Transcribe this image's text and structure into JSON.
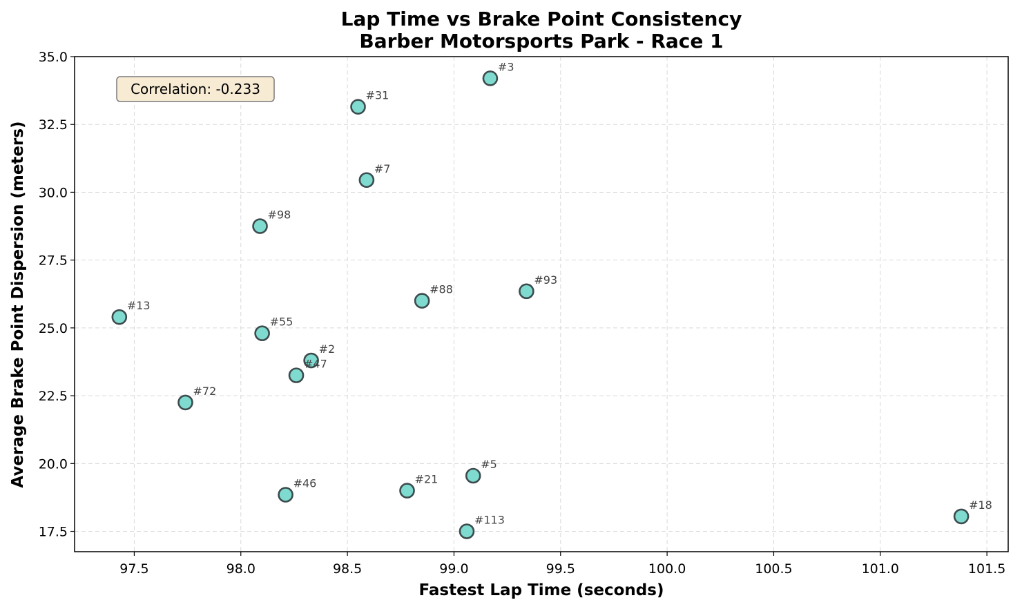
{
  "chart_data": {
    "type": "scatter",
    "title": "Lap Time vs Brake Point Consistency",
    "subtitle": "Barber Motorsports Park - Race 1",
    "xlabel": "Fastest Lap Time (seconds)",
    "ylabel": "Average Brake Point Dispersion (meters)",
    "xlim": [
      97.22,
      101.6
    ],
    "ylim": [
      16.75,
      35.0
    ],
    "xticks": [
      "97.5",
      "98.0",
      "98.5",
      "99.0",
      "99.5",
      "100.0",
      "100.5",
      "101.0",
      "101.5"
    ],
    "yticks": [
      "17.5",
      "20.0",
      "22.5",
      "25.0",
      "27.5",
      "30.0",
      "32.5",
      "35.0"
    ],
    "grid": true,
    "annotation": "Correlation: -0.233",
    "colors": {
      "marker_fill": "#7fdbd0",
      "marker_edge": "#3d4b4d",
      "annotation_bg": "#f7ebd4",
      "annotation_border": "#7a7a7a"
    },
    "points": [
      {
        "label": "#3",
        "x": 99.17,
        "y": 34.2
      },
      {
        "label": "#31",
        "x": 98.55,
        "y": 33.15
      },
      {
        "label": "#7",
        "x": 98.59,
        "y": 30.45
      },
      {
        "label": "#98",
        "x": 98.09,
        "y": 28.75
      },
      {
        "label": "#88",
        "x": 98.85,
        "y": 26.0
      },
      {
        "label": "#93",
        "x": 99.34,
        "y": 26.35
      },
      {
        "label": "#13",
        "x": 97.43,
        "y": 25.4
      },
      {
        "label": "#55",
        "x": 98.1,
        "y": 24.8
      },
      {
        "label": "#2",
        "x": 98.33,
        "y": 23.8
      },
      {
        "label": "#47",
        "x": 98.26,
        "y": 23.25
      },
      {
        "label": "#72",
        "x": 97.74,
        "y": 22.25
      },
      {
        "label": "#5",
        "x": 99.09,
        "y": 19.55
      },
      {
        "label": "#21",
        "x": 98.78,
        "y": 19.0
      },
      {
        "label": "#46",
        "x": 98.21,
        "y": 18.85
      },
      {
        "label": "#113",
        "x": 99.06,
        "y": 17.5
      },
      {
        "label": "#18",
        "x": 101.38,
        "y": 18.05
      }
    ]
  }
}
